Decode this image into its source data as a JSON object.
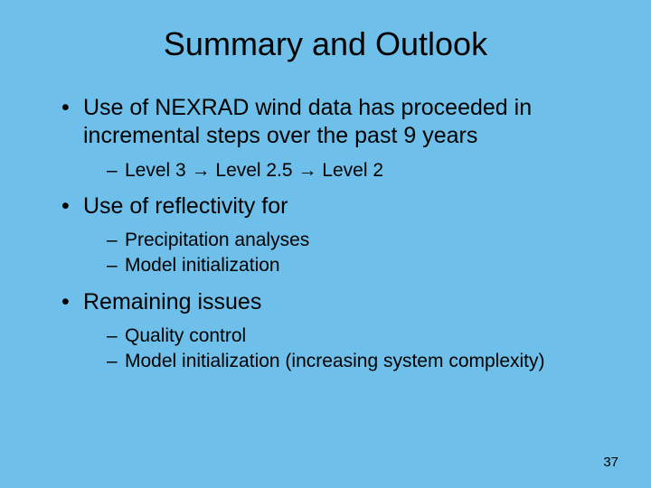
{
  "background_color": "#6ec0ea",
  "text_color": "#000000",
  "title": {
    "text": "Summary and Outlook",
    "fontsize": 36
  },
  "body_fontsize_level1": 25,
  "body_fontsize_level2": 21,
  "page_number": "37",
  "page_number_fontsize": 15,
  "bullets": [
    {
      "text": "Use of NEXRAD wind data has proceeded in incremental steps over the past 9 years",
      "sub": [
        "Level 3 → Level 2.5 → Level 2"
      ]
    },
    {
      "text": "Use of reflectivity for",
      "sub": [
        "Precipitation analyses",
        "Model initialization"
      ]
    },
    {
      "text": "Remaining issues",
      "sub": [
        "Quality control",
        "Model initialization (increasing system complexity)"
      ]
    }
  ]
}
